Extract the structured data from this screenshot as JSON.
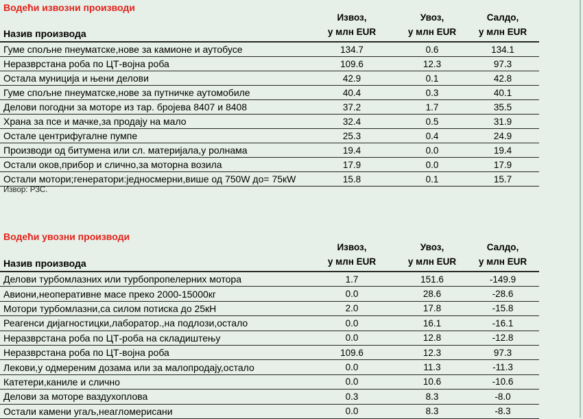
{
  "page": {
    "background": "#e6efe8",
    "line_color": "#262626",
    "accent_red": "#e2221a",
    "right_edge_line_color": "#a3c2b1"
  },
  "export_table": {
    "title": "Водећи извозни производи",
    "headers": {
      "name": "Назив производа",
      "izvoz": {
        "line1": "Извоз,",
        "line2": "у млн EUR"
      },
      "uvoz": {
        "line1": "Увоз,",
        "line2": "у млн EUR"
      },
      "saldo": {
        "line1": "Салдо,",
        "line2": "у млн EUR"
      }
    },
    "rows": [
      {
        "name": "Гуме спољне пнеуматске,нове за камионе и аутобусе",
        "izvoz": "134.7",
        "uvoz": "0.6",
        "saldo": "134.1"
      },
      {
        "name": "Неразврстана роба по ЦТ-војна роба",
        "izvoz": "109.6",
        "uvoz": "12.3",
        "saldo": "97.3"
      },
      {
        "name": "Остала муниција и њени делови",
        "izvoz": "42.9",
        "uvoz": "0.1",
        "saldo": "42.8"
      },
      {
        "name": "Гуме спољне пнеуматске,нове за путничке аутомобиле",
        "izvoz": "40.4",
        "uvoz": "0.3",
        "saldo": "40.1"
      },
      {
        "name": "Делови погодни за моторе из тар. бројева 8407 и 8408",
        "izvoz": "37.2",
        "uvoz": "1.7",
        "saldo": "35.5"
      },
      {
        "name": "Храна за псе и мачке,за продају на мало",
        "izvoz": "32.4",
        "uvoz": "0.5",
        "saldo": "31.9"
      },
      {
        "name": "Остале центрифугалне пумпе",
        "izvoz": "25.3",
        "uvoz": "0.4",
        "saldo": "24.9"
      },
      {
        "name": "Производи од битумена или сл. материјала,у ролнама",
        "izvoz": "19.4",
        "uvoz": "0.0",
        "saldo": "19.4"
      },
      {
        "name": "Остали оков,прибор и слично,за моторна возила",
        "izvoz": "17.9",
        "uvoz": "0.0",
        "saldo": "17.9"
      },
      {
        "name": "Остали мотори;генератори:једносмерни,више од 750W до= 75кW",
        "izvoz": "15.8",
        "uvoz": "0.1",
        "saldo": "15.7"
      }
    ],
    "source": "Извор: РЗС."
  },
  "import_table": {
    "title": "Водећи увозни производи",
    "headers": {
      "name": "Назив производа",
      "izvoz": {
        "line1": "Извоз,",
        "line2": "у млн EUR"
      },
      "uvoz": {
        "line1": "Увоз,",
        "line2": "у млн EUR"
      },
      "saldo": {
        "line1": "Салдо,",
        "line2": "у млн EUR"
      }
    },
    "rows": [
      {
        "name": "Делови турбомлазних или турбопропелерних мотора",
        "izvoz": "1.7",
        "uvoz": "151.6",
        "saldo": "-149.9"
      },
      {
        "name": "Авиони,неоперативне масе преко 2000-15000кг",
        "izvoz": "0.0",
        "uvoz": "28.6",
        "saldo": "-28.6"
      },
      {
        "name": "Мотори турбомлазни,са силом потиска до 25кН",
        "izvoz": "2.0",
        "uvoz": "17.8",
        "saldo": "-15.8"
      },
      {
        "name": "Реагенси дијагностицки,лаборатор.,на подлози,остало",
        "izvoz": "0.0",
        "uvoz": "16.1",
        "saldo": "-16.1"
      },
      {
        "name": "Неразврстана роба по ЦТ-роба на складиштењу",
        "izvoz": "0.0",
        "uvoz": "12.8",
        "saldo": "-12.8"
      },
      {
        "name": "Неразврстана роба по ЦТ-војна роба",
        "izvoz": "109.6",
        "uvoz": "12.3",
        "saldo": "97.3"
      },
      {
        "name": "Лекови,у одмереним дозама или за малопродају,остало",
        "izvoz": "0.0",
        "uvoz": "11.3",
        "saldo": "-11.3"
      },
      {
        "name": "Катетери,каниле и слично",
        "izvoz": "0.0",
        "uvoz": "10.6",
        "saldo": "-10.6"
      },
      {
        "name": "Делови за моторе ваздухоплова",
        "izvoz": "0.3",
        "uvoz": "8.3",
        "saldo": "-8.0"
      },
      {
        "name": "Остали камени угаљ,неагломерисани",
        "izvoz": "0.0",
        "uvoz": "8.3",
        "saldo": "-8.3"
      }
    ]
  }
}
